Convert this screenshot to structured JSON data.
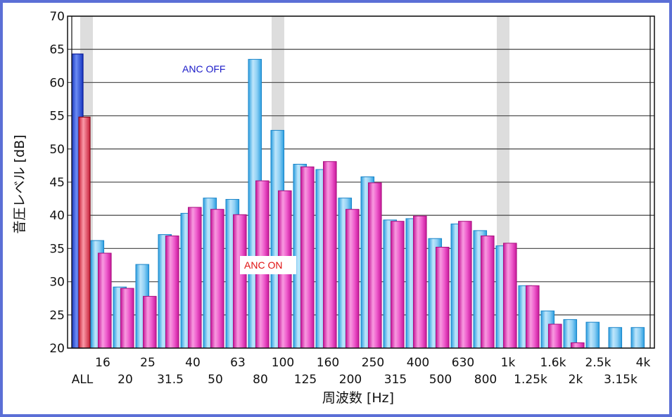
{
  "chart_data": {
    "type": "bar",
    "ylabel": "音圧レベル [dB]",
    "xlabel": "周波数 [Hz]",
    "ylim": [
      20,
      70
    ],
    "yticks": [
      20,
      25,
      30,
      35,
      40,
      45,
      50,
      55,
      60,
      65,
      70
    ],
    "grid": true,
    "categories": [
      "ALL",
      "16",
      "20",
      "25",
      "31.5",
      "40",
      "50",
      "63",
      "80",
      "100",
      "125",
      "160",
      "200",
      "250",
      "315",
      "400",
      "500",
      "630",
      "800",
      "1k",
      "1.25k",
      "1.6k",
      "2k",
      "2.5k",
      "3.15k",
      "4k"
    ],
    "highlight_bands": [
      "ALL",
      "100",
      "1k"
    ],
    "series": [
      {
        "name": "ANC OFF",
        "values": [
          64.3,
          36.2,
          29.2,
          32.6,
          37.1,
          40.3,
          42.6,
          42.4,
          63.5,
          52.8,
          47.7,
          46.9,
          42.6,
          45.8,
          39.3,
          39.5,
          36.5,
          38.7,
          37.7,
          35.4,
          29.4,
          25.6,
          24.3,
          23.9,
          23.1,
          23.1
        ]
      },
      {
        "name": "ANC ON",
        "values": [
          54.8,
          34.3,
          29.0,
          27.8,
          36.9,
          41.2,
          40.9,
          40.1,
          45.2,
          43.7,
          47.3,
          48.1,
          40.9,
          44.9,
          39.1,
          39.9,
          35.2,
          39.1,
          36.9,
          35.8,
          29.4,
          23.6,
          20.8,
          null,
          null,
          null
        ]
      }
    ],
    "colors": {
      "off_all": "#2e59e6",
      "on_all": "#f0506e",
      "off": "#7cc8f0",
      "on": "#ee4cc4",
      "highlight": "#dddddd",
      "off_label": "#1a1ac8",
      "on_label": "#e01010"
    },
    "annotations": [
      {
        "text": "ANC OFF",
        "color": "#1a1ac8"
      },
      {
        "text": "ANC ON",
        "color": "#e01010"
      }
    ]
  }
}
